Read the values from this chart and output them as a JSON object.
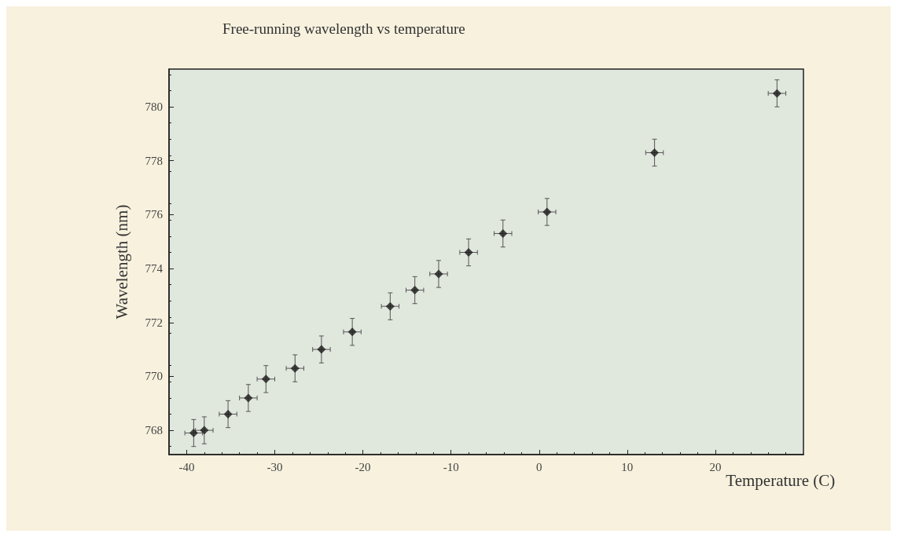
{
  "chart_data": {
    "type": "scatter",
    "title": "Free-running wavelength vs temperature",
    "xlabel": "Temperature (C)",
    "ylabel": "Wavelength (nm)",
    "x": [
      -39.2,
      -38,
      -35.3,
      -33,
      -31,
      -27.7,
      -24.7,
      -21.2,
      -16.9,
      -14.1,
      -11.4,
      -8,
      -4.1,
      0.9,
      13.1,
      27
    ],
    "values": [
      767.9,
      768.0,
      768.6,
      769.2,
      769.9,
      770.3,
      771.0,
      771.65,
      772.6,
      773.2,
      773.8,
      774.6,
      775.3,
      776.1,
      778.3,
      780.5
    ],
    "errors": [
      0.5,
      0.5,
      0.5,
      0.5,
      0.5,
      0.5,
      0.5,
      0.5,
      0.5,
      0.5,
      0.5,
      0.5,
      0.5,
      0.5,
      0.5,
      0.5
    ],
    "xerrors": [
      1,
      1,
      1,
      1,
      1,
      1,
      1,
      1,
      1,
      1,
      1,
      1,
      1,
      1,
      1,
      1
    ],
    "color": "#1a1a1a",
    "marker": "diamond",
    "grid": false,
    "xlim": [
      -42,
      30
    ],
    "xticks": [
      -40,
      -30,
      -20,
      -10,
      0,
      10,
      20
    ],
    "ylim": [
      767.1,
      781.4
    ],
    "yticks": [
      768,
      770,
      772,
      774,
      776,
      778,
      780
    ]
  }
}
